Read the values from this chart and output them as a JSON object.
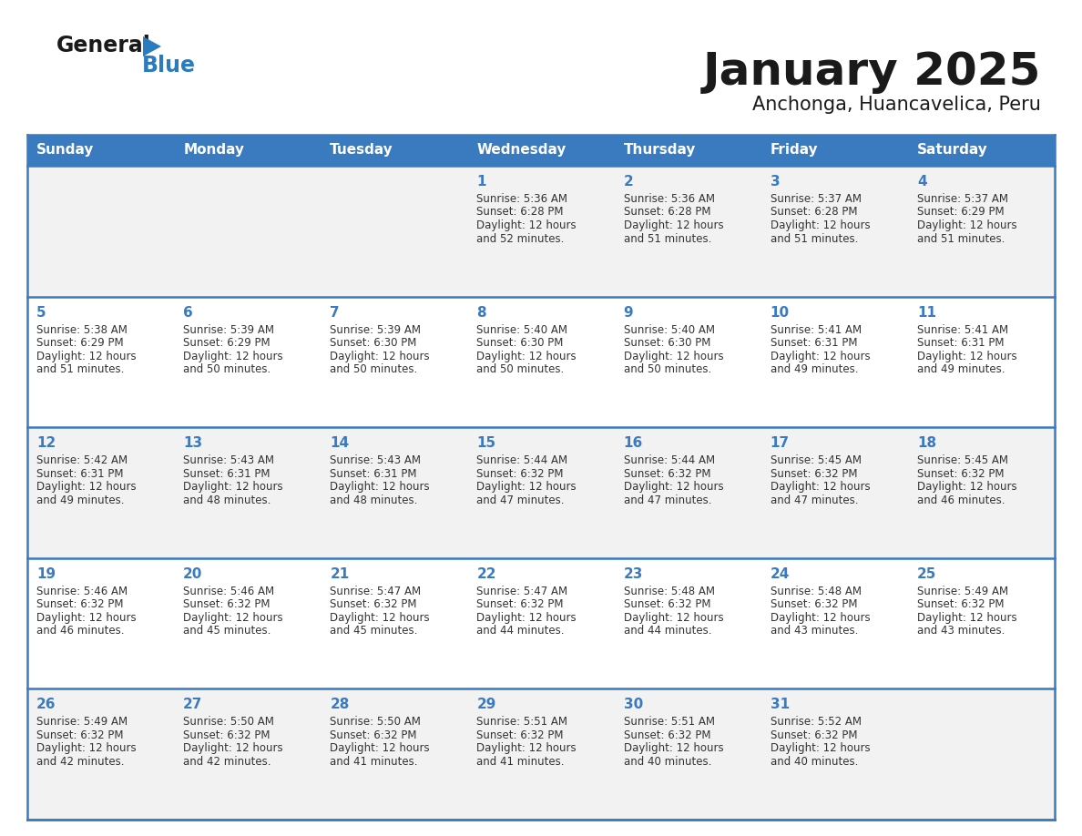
{
  "title": "January 2025",
  "subtitle": "Anchonga, Huancavelica, Peru",
  "header_bg": "#3a7abf",
  "header_text_color": "#ffffff",
  "cell_bg_odd": "#f2f2f2",
  "cell_bg_even": "#ffffff",
  "day_number_color": "#3a7abf",
  "content_color": "#333333",
  "border_color": "#3a7abf",
  "days_of_week": [
    "Sunday",
    "Monday",
    "Tuesday",
    "Wednesday",
    "Thursday",
    "Friday",
    "Saturday"
  ],
  "weeks": [
    [
      {
        "day": "",
        "sunrise": "",
        "sunset": "",
        "daylight_h": "",
        "daylight_m": ""
      },
      {
        "day": "",
        "sunrise": "",
        "sunset": "",
        "daylight_h": "",
        "daylight_m": ""
      },
      {
        "day": "",
        "sunrise": "",
        "sunset": "",
        "daylight_h": "",
        "daylight_m": ""
      },
      {
        "day": "1",
        "sunrise": "5:36 AM",
        "sunset": "6:28 PM",
        "daylight_h": "12",
        "daylight_m": "52"
      },
      {
        "day": "2",
        "sunrise": "5:36 AM",
        "sunset": "6:28 PM",
        "daylight_h": "12",
        "daylight_m": "51"
      },
      {
        "day": "3",
        "sunrise": "5:37 AM",
        "sunset": "6:28 PM",
        "daylight_h": "12",
        "daylight_m": "51"
      },
      {
        "day": "4",
        "sunrise": "5:37 AM",
        "sunset": "6:29 PM",
        "daylight_h": "12",
        "daylight_m": "51"
      }
    ],
    [
      {
        "day": "5",
        "sunrise": "5:38 AM",
        "sunset": "6:29 PM",
        "daylight_h": "12",
        "daylight_m": "51"
      },
      {
        "day": "6",
        "sunrise": "5:39 AM",
        "sunset": "6:29 PM",
        "daylight_h": "12",
        "daylight_m": "50"
      },
      {
        "day": "7",
        "sunrise": "5:39 AM",
        "sunset": "6:30 PM",
        "daylight_h": "12",
        "daylight_m": "50"
      },
      {
        "day": "8",
        "sunrise": "5:40 AM",
        "sunset": "6:30 PM",
        "daylight_h": "12",
        "daylight_m": "50"
      },
      {
        "day": "9",
        "sunrise": "5:40 AM",
        "sunset": "6:30 PM",
        "daylight_h": "12",
        "daylight_m": "50"
      },
      {
        "day": "10",
        "sunrise": "5:41 AM",
        "sunset": "6:31 PM",
        "daylight_h": "12",
        "daylight_m": "49"
      },
      {
        "day": "11",
        "sunrise": "5:41 AM",
        "sunset": "6:31 PM",
        "daylight_h": "12",
        "daylight_m": "49"
      }
    ],
    [
      {
        "day": "12",
        "sunrise": "5:42 AM",
        "sunset": "6:31 PM",
        "daylight_h": "12",
        "daylight_m": "49"
      },
      {
        "day": "13",
        "sunrise": "5:43 AM",
        "sunset": "6:31 PM",
        "daylight_h": "12",
        "daylight_m": "48"
      },
      {
        "day": "14",
        "sunrise": "5:43 AM",
        "sunset": "6:31 PM",
        "daylight_h": "12",
        "daylight_m": "48"
      },
      {
        "day": "15",
        "sunrise": "5:44 AM",
        "sunset": "6:32 PM",
        "daylight_h": "12",
        "daylight_m": "47"
      },
      {
        "day": "16",
        "sunrise": "5:44 AM",
        "sunset": "6:32 PM",
        "daylight_h": "12",
        "daylight_m": "47"
      },
      {
        "day": "17",
        "sunrise": "5:45 AM",
        "sunset": "6:32 PM",
        "daylight_h": "12",
        "daylight_m": "47"
      },
      {
        "day": "18",
        "sunrise": "5:45 AM",
        "sunset": "6:32 PM",
        "daylight_h": "12",
        "daylight_m": "46"
      }
    ],
    [
      {
        "day": "19",
        "sunrise": "5:46 AM",
        "sunset": "6:32 PM",
        "daylight_h": "12",
        "daylight_m": "46"
      },
      {
        "day": "20",
        "sunrise": "5:46 AM",
        "sunset": "6:32 PM",
        "daylight_h": "12",
        "daylight_m": "45"
      },
      {
        "day": "21",
        "sunrise": "5:47 AM",
        "sunset": "6:32 PM",
        "daylight_h": "12",
        "daylight_m": "45"
      },
      {
        "day": "22",
        "sunrise": "5:47 AM",
        "sunset": "6:32 PM",
        "daylight_h": "12",
        "daylight_m": "44"
      },
      {
        "day": "23",
        "sunrise": "5:48 AM",
        "sunset": "6:32 PM",
        "daylight_h": "12",
        "daylight_m": "44"
      },
      {
        "day": "24",
        "sunrise": "5:48 AM",
        "sunset": "6:32 PM",
        "daylight_h": "12",
        "daylight_m": "43"
      },
      {
        "day": "25",
        "sunrise": "5:49 AM",
        "sunset": "6:32 PM",
        "daylight_h": "12",
        "daylight_m": "43"
      }
    ],
    [
      {
        "day": "26",
        "sunrise": "5:49 AM",
        "sunset": "6:32 PM",
        "daylight_h": "12",
        "daylight_m": "42"
      },
      {
        "day": "27",
        "sunrise": "5:50 AM",
        "sunset": "6:32 PM",
        "daylight_h": "12",
        "daylight_m": "42"
      },
      {
        "day": "28",
        "sunrise": "5:50 AM",
        "sunset": "6:32 PM",
        "daylight_h": "12",
        "daylight_m": "41"
      },
      {
        "day": "29",
        "sunrise": "5:51 AM",
        "sunset": "6:32 PM",
        "daylight_h": "12",
        "daylight_m": "41"
      },
      {
        "day": "30",
        "sunrise": "5:51 AM",
        "sunset": "6:32 PM",
        "daylight_h": "12",
        "daylight_m": "40"
      },
      {
        "day": "31",
        "sunrise": "5:52 AM",
        "sunset": "6:32 PM",
        "daylight_h": "12",
        "daylight_m": "40"
      },
      {
        "day": "",
        "sunrise": "",
        "sunset": "",
        "daylight_h": "",
        "daylight_m": ""
      }
    ]
  ],
  "logo_general_color": "#1a1a1a",
  "logo_blue_color": "#2b7bbf"
}
